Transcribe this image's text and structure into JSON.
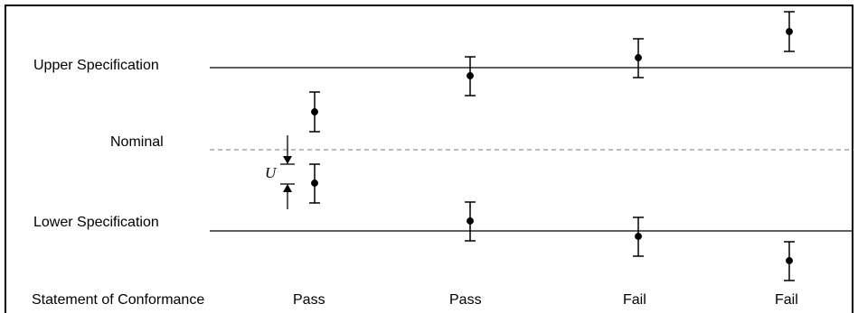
{
  "labels": {
    "upper_spec": "Upper Specification",
    "nominal": "Nominal",
    "lower_spec": "Lower Specification",
    "conformance_heading": "Statement of Conformance",
    "uncertainty_symbol": "U"
  },
  "verdicts": [
    "Pass",
    "Pass",
    "Fail",
    "Fail"
  ]
}
